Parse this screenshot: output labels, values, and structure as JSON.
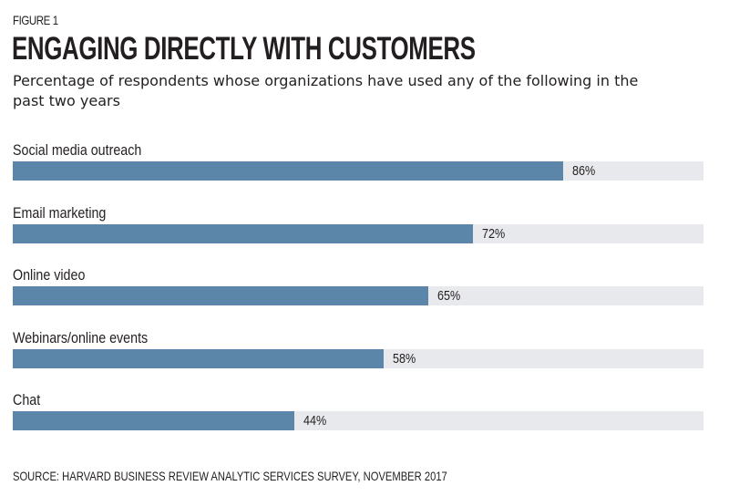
{
  "chart_data": {
    "type": "bar",
    "orientation": "horizontal",
    "figure_label": "FIGURE 1",
    "title": "ENGAGING DIRECTLY WITH CUSTOMERS",
    "subtitle": "Percentage of respondents whose organizations have used any of the following in the past two years",
    "categories": [
      "Social media outreach",
      "Email marketing",
      "Online video",
      "Webinars/online events",
      "Chat"
    ],
    "values": [
      86,
      72,
      65,
      58,
      44
    ],
    "value_labels": [
      "86%",
      "72%",
      "65%",
      "58%",
      "44%"
    ],
    "unit": "%",
    "xlim": [
      0,
      108
    ],
    "grid": false,
    "legend": "none",
    "colors": {
      "bar": "#5b86aa",
      "track": "#e8e9ec",
      "text": "#231f20"
    },
    "source": "SOURCE: HARVARD BUSINESS REVIEW ANALYTIC SERVICES SURVEY, NOVEMBER 2017"
  }
}
